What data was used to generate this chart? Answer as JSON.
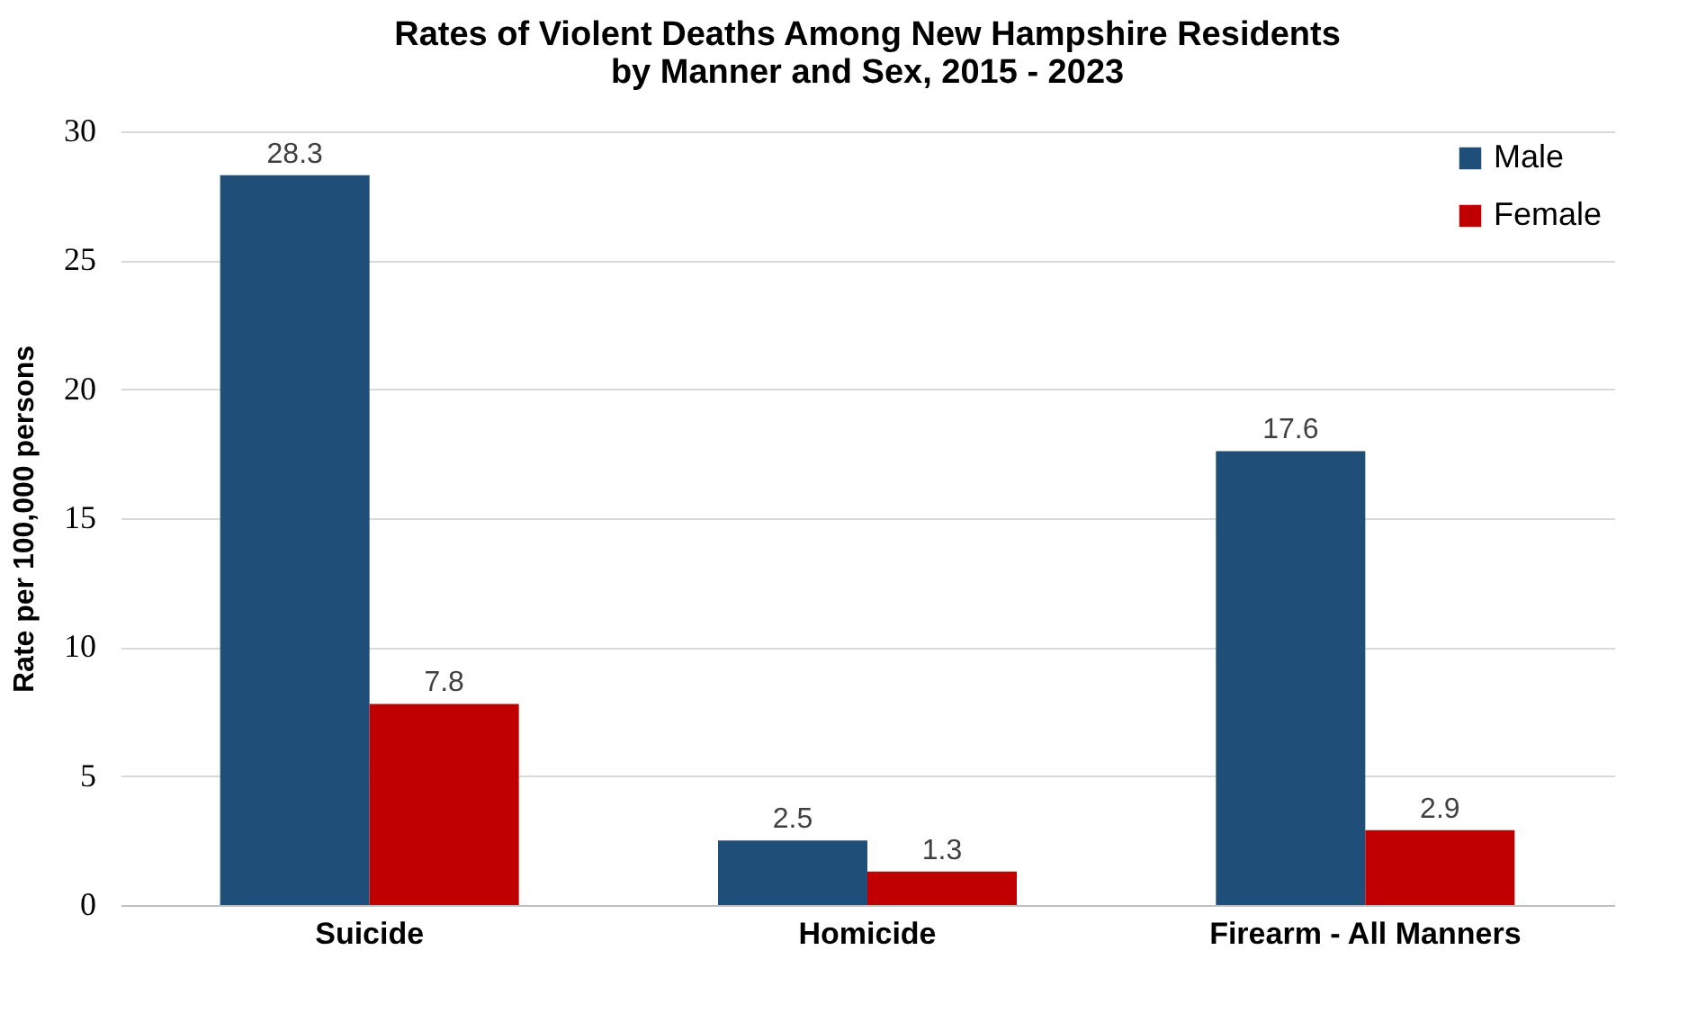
{
  "chart_data": {
    "type": "bar",
    "title": [
      "Rates of Violent Deaths Among New Hampshire Residents",
      "by Manner and Sex, 2015 - 2023"
    ],
    "ylabel": "Rate per 100,000 persons",
    "categories": [
      "Suicide",
      "Homicide",
      "Firearm - All Manners"
    ],
    "series": [
      {
        "name": "Male",
        "color": "#1f4e79",
        "values": [
          28.3,
          2.5,
          17.6
        ]
      },
      {
        "name": "Female",
        "color": "#c00000",
        "values": [
          7.8,
          1.3,
          2.9
        ]
      }
    ],
    "ylim": [
      0,
      30
    ],
    "yticks": [
      0,
      5,
      10,
      15,
      20,
      25,
      30
    ],
    "grid": "y",
    "legend": "top right",
    "data_labels": true
  }
}
